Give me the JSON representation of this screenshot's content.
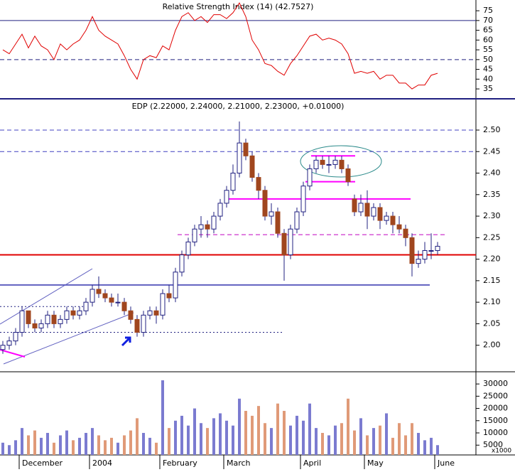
{
  "chart_data": [
    {
      "type": "line",
      "title": "Relative Strength Index (14) (42.7527)",
      "color": "#e00000",
      "values": [
        55,
        53,
        58,
        63,
        56,
        62,
        57,
        55,
        50,
        58,
        55,
        58,
        60,
        65,
        72,
        65,
        62,
        60,
        58,
        52,
        45,
        40,
        50,
        52,
        51,
        57,
        55,
        65,
        72,
        74,
        70,
        72,
        69,
        73,
        73,
        71,
        74,
        79,
        72,
        60,
        55,
        48,
        47,
        44,
        42,
        48,
        52,
        57,
        62,
        63,
        60,
        61,
        60,
        58,
        53,
        43,
        44,
        43,
        44,
        40,
        42,
        42,
        38,
        38,
        35,
        37,
        37,
        42,
        43
      ],
      "ylim": [
        30.3,
        80.5
      ],
      "yticks": [
        35,
        40,
        45,
        50,
        55,
        60,
        65,
        70,
        75
      ],
      "levels": [
        {
          "value": 70,
          "style": "solid",
          "color": "#202080"
        },
        {
          "value": 50,
          "style": "dashed",
          "color": "#202080"
        }
      ]
    },
    {
      "type": "candlestick",
      "title": "EDP (2.22000, 2.24000, 2.21000, 2.23000, +0.01000)",
      "up_color": "#ffffff",
      "down_color": "#a0461e",
      "wick_color": "#202080",
      "open": [
        1.99,
        2.0,
        2.01,
        2.03,
        2.08,
        2.05,
        2.04,
        2.05,
        2.07,
        2.05,
        2.06,
        2.08,
        2.07,
        2.08,
        2.1,
        2.13,
        2.12,
        2.11,
        2.1,
        2.1,
        2.08,
        2.06,
        2.03,
        2.07,
        2.08,
        2.07,
        2.12,
        2.11,
        2.17,
        2.21,
        2.24,
        2.27,
        2.28,
        2.27,
        2.3,
        2.33,
        2.36,
        2.4,
        2.47,
        2.44,
        2.39,
        2.36,
        2.3,
        2.31,
        2.26,
        2.21,
        2.27,
        2.31,
        2.37,
        2.41,
        2.43,
        2.42,
        2.42,
        2.43,
        2.41,
        2.34,
        2.31,
        2.33,
        2.3,
        2.32,
        2.29,
        2.3,
        2.28,
        2.27,
        2.25,
        2.19,
        2.2,
        2.22,
        2.22
      ],
      "high": [
        2.01,
        2.02,
        2.04,
        2.09,
        2.08,
        2.06,
        2.06,
        2.08,
        2.08,
        2.07,
        2.09,
        2.09,
        2.09,
        2.11,
        2.14,
        2.16,
        2.13,
        2.12,
        2.12,
        2.11,
        2.09,
        2.07,
        2.08,
        2.09,
        2.09,
        2.13,
        2.14,
        2.18,
        2.22,
        2.25,
        2.28,
        2.3,
        2.29,
        2.31,
        2.34,
        2.37,
        2.42,
        2.52,
        2.48,
        2.45,
        2.4,
        2.37,
        2.33,
        2.32,
        2.27,
        2.28,
        2.32,
        2.38,
        2.42,
        2.44,
        2.44,
        2.44,
        2.44,
        2.44,
        2.42,
        2.35,
        2.35,
        2.36,
        2.33,
        2.33,
        2.31,
        2.31,
        2.3,
        2.28,
        2.26,
        2.22,
        2.24,
        2.26,
        2.24
      ],
      "low": [
        1.98,
        1.99,
        2.0,
        2.02,
        2.04,
        2.03,
        2.03,
        2.04,
        2.04,
        2.04,
        2.05,
        2.06,
        2.06,
        2.07,
        2.09,
        2.11,
        2.1,
        2.09,
        2.09,
        2.07,
        2.05,
        2.02,
        2.02,
        2.06,
        2.05,
        2.06,
        2.1,
        2.1,
        2.16,
        2.2,
        2.23,
        2.25,
        2.25,
        2.26,
        2.29,
        2.32,
        2.35,
        2.39,
        2.43,
        2.38,
        2.34,
        2.29,
        2.28,
        2.25,
        2.15,
        2.2,
        2.26,
        2.3,
        2.36,
        2.4,
        2.41,
        2.4,
        2.41,
        2.4,
        2.37,
        2.3,
        2.3,
        2.27,
        2.29,
        2.27,
        2.28,
        2.26,
        2.26,
        2.23,
        2.16,
        2.18,
        2.19,
        2.2,
        2.21
      ],
      "close": [
        2.0,
        2.01,
        2.03,
        2.08,
        2.05,
        2.04,
        2.05,
        2.07,
        2.05,
        2.06,
        2.08,
        2.07,
        2.08,
        2.1,
        2.13,
        2.12,
        2.11,
        2.1,
        2.1,
        2.08,
        2.06,
        2.03,
        2.07,
        2.08,
        2.07,
        2.12,
        2.11,
        2.17,
        2.21,
        2.24,
        2.27,
        2.28,
        2.27,
        2.3,
        2.33,
        2.36,
        2.4,
        2.47,
        2.44,
        2.39,
        2.36,
        2.3,
        2.31,
        2.26,
        2.21,
        2.27,
        2.31,
        2.37,
        2.41,
        2.43,
        2.42,
        2.42,
        2.43,
        2.41,
        2.38,
        2.31,
        2.33,
        2.3,
        2.32,
        2.29,
        2.3,
        2.28,
        2.27,
        2.25,
        2.19,
        2.2,
        2.22,
        2.22,
        2.23
      ],
      "ylim": [
        1.94,
        2.571
      ],
      "yticks": [
        {
          "value": 2.0,
          "label": "2.00"
        },
        {
          "value": 2.05,
          "label": "2.05"
        },
        {
          "value": 2.1,
          "label": "2.10"
        },
        {
          "value": 2.15,
          "label": "2.15"
        },
        {
          "value": 2.2,
          "label": "2.20"
        },
        {
          "value": 2.25,
          "label": "2.25"
        },
        {
          "value": 2.3,
          "label": "2.30"
        },
        {
          "value": 2.35,
          "label": "2.35"
        },
        {
          "value": 2.4,
          "label": "2.40"
        },
        {
          "value": 2.45,
          "label": "2.45"
        },
        {
          "value": 2.5,
          "label": "2.50"
        }
      ],
      "levels": [
        {
          "value": 2.5,
          "style": "dashed",
          "color": "#4040c0"
        },
        {
          "value": 2.45,
          "style": "dashed",
          "color": "#4040c0"
        },
        {
          "value": 2.21,
          "style": "solid",
          "color": "#e00000"
        },
        {
          "value": 2.14,
          "style": "solid",
          "color": "#6060c0"
        },
        {
          "value": 2.34,
          "style": "solid",
          "color": "#ff00ff"
        },
        {
          "value": 2.257,
          "style": "dashed",
          "color": "#c000c0"
        },
        {
          "value": 2.03,
          "style": "dotted",
          "color": "#202080"
        },
        {
          "value": 2.09,
          "style": "dotted",
          "color": "#202080"
        },
        {
          "value": 2.38,
          "style": "solid",
          "color": "#ff00ff"
        },
        {
          "value": 2.44,
          "style": "solid",
          "color": "#ff00ff"
        }
      ]
    },
    {
      "type": "bar",
      "unit_label": "x1000",
      "up_color": "#7b7bd0",
      "down_color": "#e09a78",
      "values": [
        6000,
        5000,
        7000,
        12000,
        9000,
        11000,
        8000,
        10000,
        6000,
        9000,
        11000,
        7000,
        8000,
        10000,
        12000,
        9000,
        7000,
        8000,
        6000,
        9000,
        11000,
        16000,
        10000,
        8000,
        6000,
        31500,
        12000,
        15000,
        17000,
        13000,
        20000,
        14000,
        12000,
        16000,
        18000,
        15000,
        13000,
        24000,
        19000,
        17000,
        21000,
        14000,
        12000,
        22000,
        19000,
        13000,
        17000,
        15000,
        22000,
        12000,
        10000,
        9000,
        13000,
        14000,
        24000,
        11000,
        16000,
        9000,
        12000,
        13000,
        18000,
        8000,
        14000,
        9000,
        14000,
        10000,
        7000,
        8000,
        5000
      ],
      "ylim": [
        1000,
        34400
      ],
      "yticks": [
        5000,
        10000,
        15000,
        20000,
        25000,
        30000
      ],
      "categories": [
        null,
        null,
        null,
        "December",
        null,
        null,
        null,
        null,
        null,
        null,
        null,
        null,
        null,
        null,
        "2004",
        null,
        null,
        null,
        null,
        null,
        null,
        null,
        null,
        null,
        null,
        "February",
        null,
        null,
        null,
        null,
        null,
        null,
        null,
        null,
        null,
        "March",
        null,
        null,
        null,
        null,
        null,
        null,
        null,
        null,
        null,
        null,
        null,
        "April",
        null,
        null,
        null,
        null,
        null,
        null,
        null,
        null,
        null,
        "May",
        null,
        null,
        null,
        null,
        null,
        null,
        null,
        null,
        null,
        null,
        "June"
      ]
    }
  ]
}
